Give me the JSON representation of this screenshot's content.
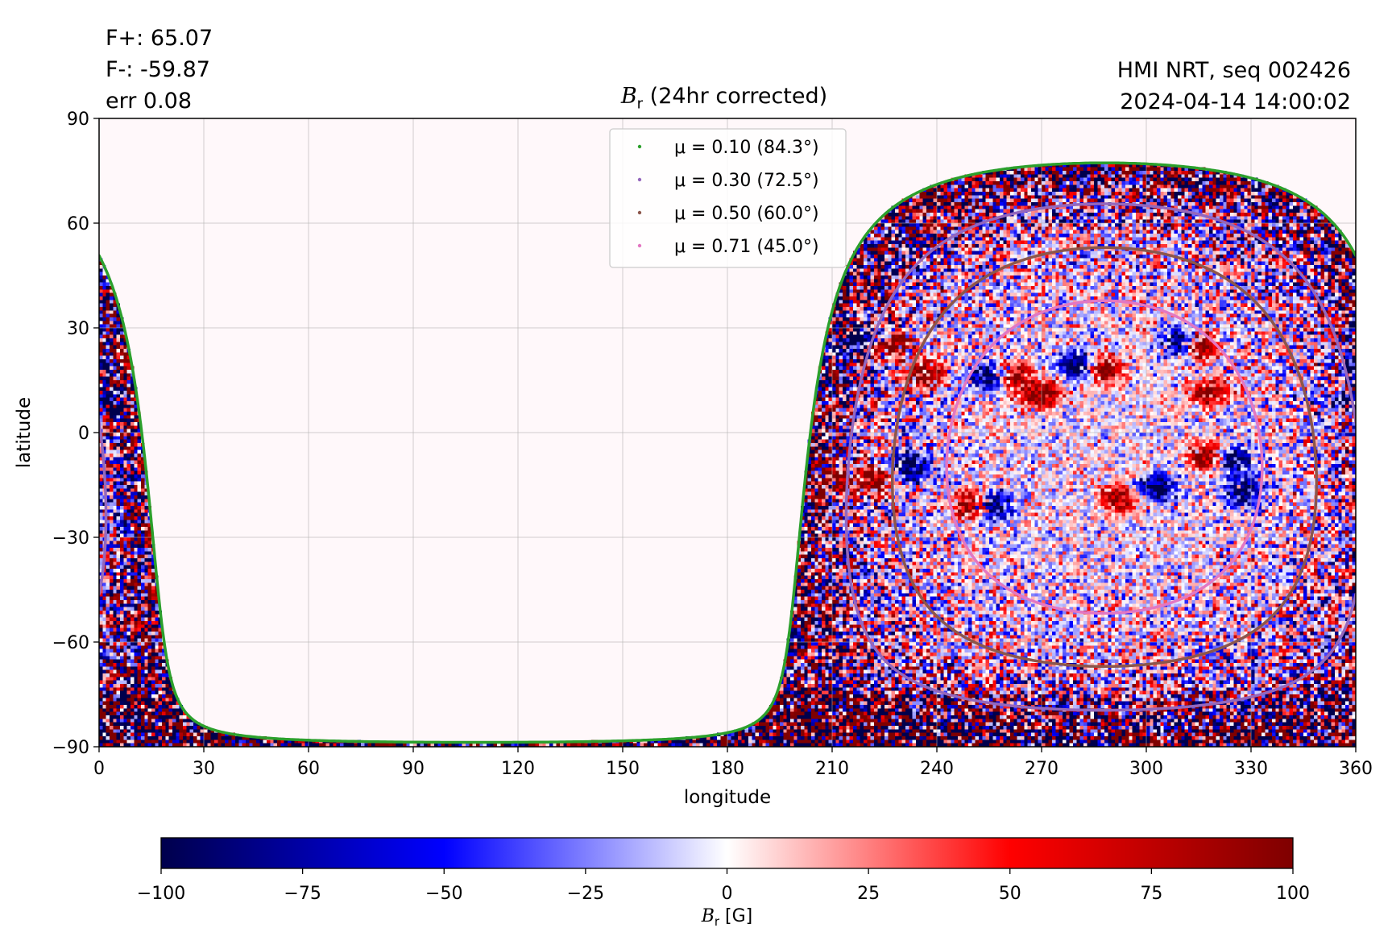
{
  "header": {
    "flux_positive": "F+: 65.07",
    "flux_negative": "F-: -59.87",
    "error": "err 0.08",
    "source": "HMI NRT, seq 002426",
    "timestamp": "2024-04-14 14:00:02",
    "title_symbol": "B",
    "title_subscript": "r",
    "title_rest": " (24hr corrected)"
  },
  "chart_data": {
    "type": "heatmap",
    "title": "B_r (24hr corrected)",
    "xlabel": "longitude",
    "ylabel": "latitude",
    "xlim": [
      0,
      360
    ],
    "ylim": [
      -90,
      90
    ],
    "xticks": [
      0,
      30,
      60,
      90,
      120,
      150,
      180,
      210,
      240,
      270,
      300,
      330,
      360
    ],
    "yticks": [
      -90,
      -60,
      -30,
      0,
      30,
      60,
      90
    ],
    "grid": true,
    "legend_placement": "top-center",
    "colormap": "seismic",
    "colorbar": {
      "label_symbol": "B",
      "label_subscript": "r",
      "label_unit": " [G]",
      "range": [
        -100,
        100
      ],
      "ticks": [
        -100,
        -75,
        -50,
        -25,
        0,
        25,
        50,
        75,
        100
      ]
    },
    "disk_center": {
      "longitude": 288,
      "latitude": -7
    },
    "series": [
      {
        "name": "μ = 0.10 (84.3°)",
        "mu": 0.1,
        "angle_deg": 84.3,
        "color": "#2ca02c"
      },
      {
        "name": "μ = 0.30 (72.5°)",
        "mu": 0.3,
        "angle_deg": 72.5,
        "color": "#9467bd"
      },
      {
        "name": "μ = 0.50 (60.0°)",
        "mu": 0.5,
        "angle_deg": 60.0,
        "color": "#8c564b"
      },
      {
        "name": "μ = 0.71 (45.0°)",
        "mu": 0.71,
        "angle_deg": 45.0,
        "color": "#e377c2"
      }
    ],
    "active_regions": [
      {
        "lon": 218,
        "lat": 27,
        "b": -90
      },
      {
        "lon": 227,
        "lat": 25,
        "b": 90
      },
      {
        "lon": 236,
        "lat": 17,
        "b": 85
      },
      {
        "lon": 255,
        "lat": 16,
        "b": -90
      },
      {
        "lon": 262,
        "lat": 16,
        "b": 85
      },
      {
        "lon": 280,
        "lat": 19,
        "b": -90
      },
      {
        "lon": 288,
        "lat": 18,
        "b": 85
      },
      {
        "lon": 270,
        "lat": 11,
        "b": 95
      },
      {
        "lon": 310,
        "lat": 26,
        "b": -95
      },
      {
        "lon": 315,
        "lat": 25,
        "b": 95
      },
      {
        "lon": 318,
        "lat": 12,
        "b": 80
      },
      {
        "lon": 210,
        "lat": -14,
        "b": 100
      },
      {
        "lon": 222,
        "lat": -13,
        "b": 90
      },
      {
        "lon": 232,
        "lat": -10,
        "b": -90
      },
      {
        "lon": 250,
        "lat": -21,
        "b": 95
      },
      {
        "lon": 256,
        "lat": -21,
        "b": -95
      },
      {
        "lon": 292,
        "lat": -19,
        "b": 80
      },
      {
        "lon": 303,
        "lat": -16,
        "b": -80
      },
      {
        "lon": 317,
        "lat": -7,
        "b": 80
      },
      {
        "lon": 325,
        "lat": -8,
        "b": -80
      },
      {
        "lon": 328,
        "lat": -17,
        "b": -85
      },
      {
        "lon": 357,
        "lat": 8,
        "b": -85
      },
      {
        "lon": 359,
        "lat": 6,
        "b": 80
      },
      {
        "lon": 2,
        "lat": 19,
        "b": -90
      },
      {
        "lon": 8,
        "lat": 22,
        "b": 90
      },
      {
        "lon": 3,
        "lat": 8,
        "b": -90
      }
    ]
  }
}
